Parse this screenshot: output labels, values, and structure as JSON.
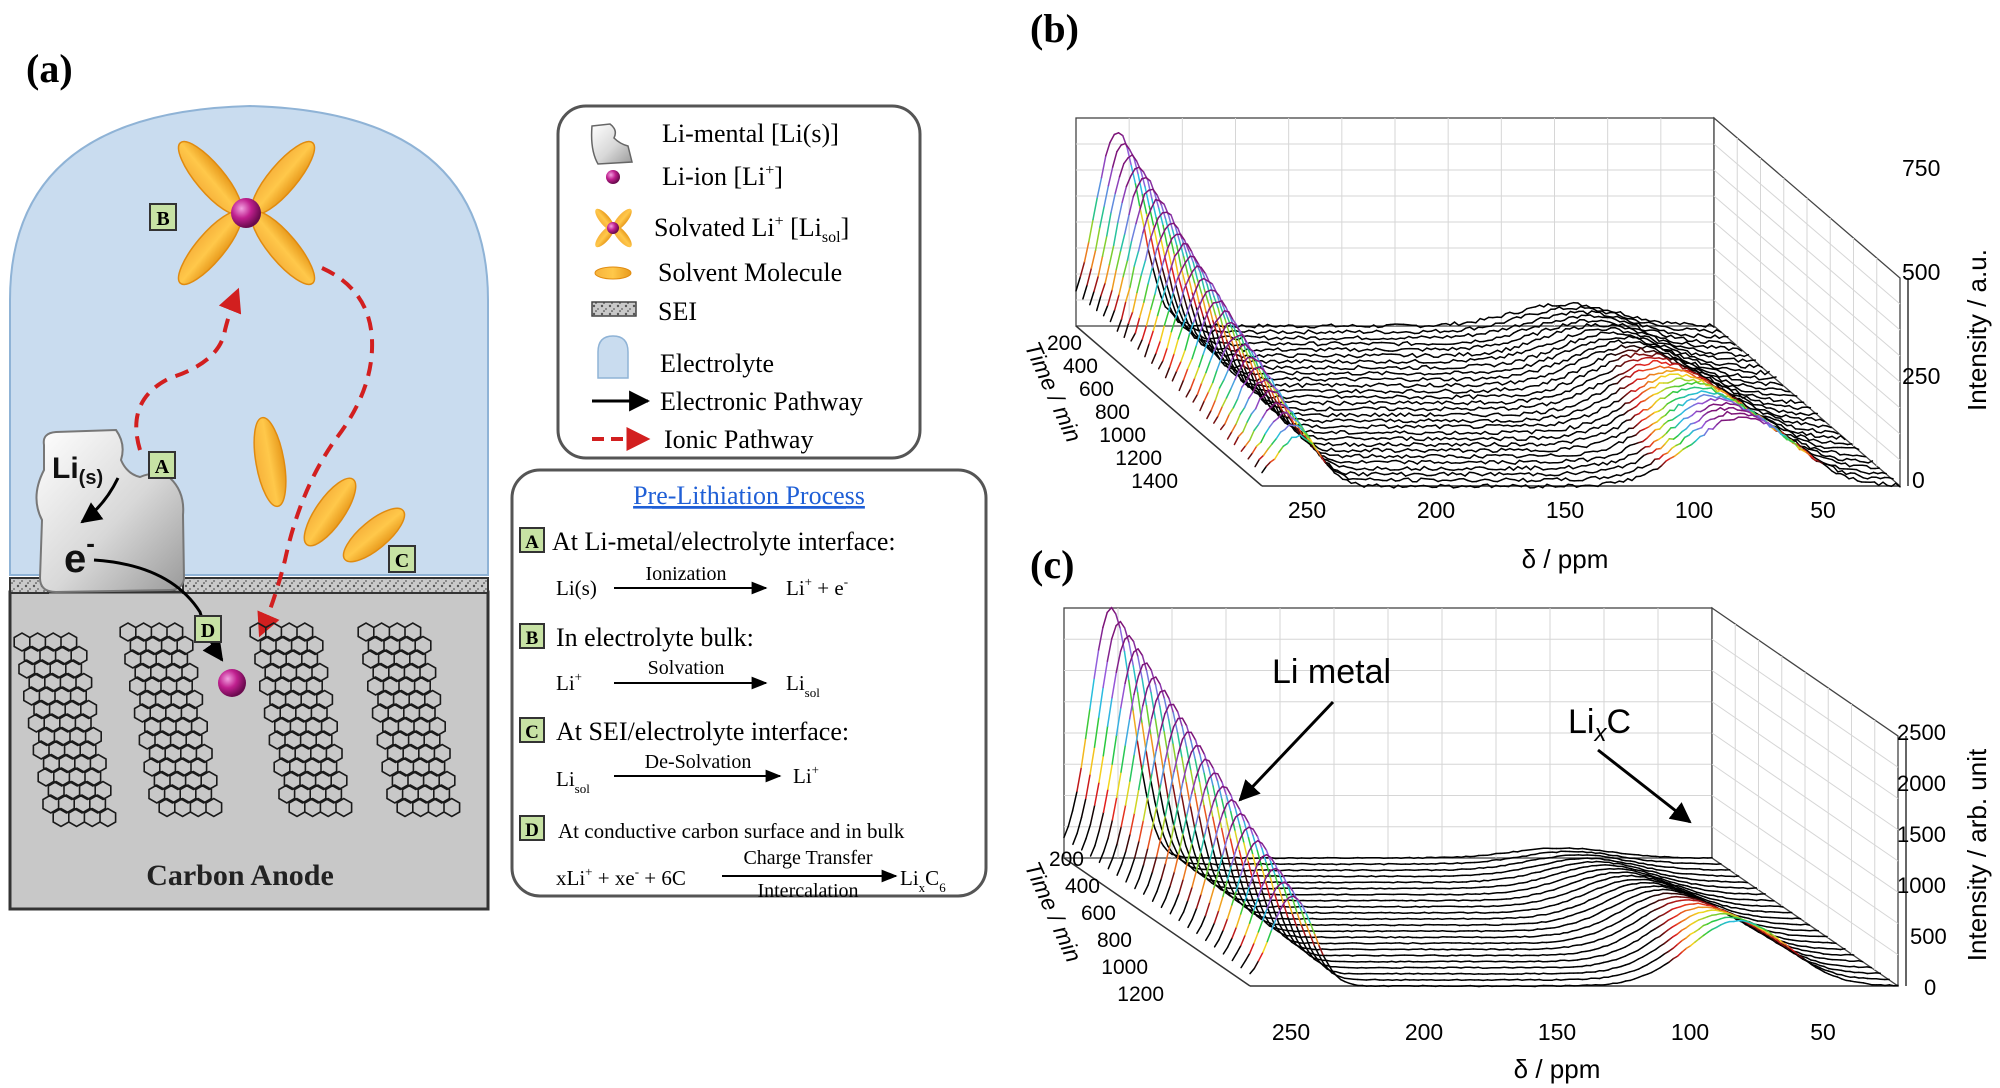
{
  "panels": {
    "a": "(a)",
    "b": "(b)",
    "c": "(c)"
  },
  "scene": {
    "li_solid": "Li",
    "li_solid_sub": "(s)",
    "electron": "e",
    "electron_sup": "-",
    "anode_label": "Carbon Anode",
    "markers": [
      "A",
      "B",
      "C",
      "D"
    ]
  },
  "legend": {
    "items": [
      {
        "text": "Li-mental [Li(s)]"
      },
      {
        "text": "Li-ion [Li",
        "sup": "+",
        "tail": "]"
      },
      {
        "text": "Solvated Li",
        "sup": "+",
        "mid": " [Li",
        "sub": "sol",
        "tail": "]"
      },
      {
        "text": "Solvent Molecule"
      },
      {
        "text": "SEI"
      },
      {
        "text": "Electrolyte"
      },
      {
        "text": "Electronic Pathway"
      },
      {
        "text": "Ionic Pathway"
      }
    ]
  },
  "process": {
    "title": "Pre-Lithiation Process",
    "steps": [
      {
        "marker": "A",
        "heading": "At Li-metal/electrolyte interface:"
      },
      {
        "marker": "B",
        "heading": "In electrolyte bulk:"
      },
      {
        "marker": "C",
        "heading": "At SEI/electrolyte interface:"
      },
      {
        "marker": "D",
        "heading": "At conductive carbon surface and in bulk"
      }
    ],
    "eq_a": {
      "lhs": "Li(s)",
      "arrow": "Ionization",
      "rhs": "Li",
      "rhs_sup": "+",
      "rhs_tail": " + e",
      "rhs_tail_sup": "-"
    },
    "eq_b": {
      "lhs": "Li",
      "lhs_sup": "+",
      "arrow": "Solvation",
      "rhs": "Li",
      "rhs_sub": "sol"
    },
    "eq_c": {
      "lhs": "Li",
      "lhs_sub": "sol",
      "arrow": "De-Solvation",
      "rhs": "Li",
      "rhs_sup": "+"
    },
    "eq_d": {
      "lhs": "xLi",
      "lhs_sup": "+",
      "lhs_mid": " + xe",
      "lhs_mid_sup": "-",
      "lhs_tail": " + 6C",
      "arrow_top": "Charge Transfer",
      "arrow_bottom": "Intercalation",
      "rhs": "Li",
      "rhs_sub1": "x",
      "rhs_mid": "C",
      "rhs_sub2": "6"
    }
  },
  "chart_b": {
    "xlabel": "δ / ppm",
    "ylabel": "Intensity / a.u.",
    "tlabel": "Time / min",
    "xticks": [
      "250",
      "200",
      "150",
      "100",
      "50"
    ],
    "zticks": [
      "0",
      "250",
      "500",
      "750"
    ],
    "tticks": [
      "200",
      "400",
      "600",
      "800",
      "1000",
      "1200",
      "1400"
    ]
  },
  "chart_c": {
    "xlabel": "δ / ppm",
    "ylabel": "Intensity / arb. unit",
    "tlabel": "Time / min",
    "xticks": [
      "250",
      "200",
      "150",
      "100",
      "50"
    ],
    "zticks": [
      "0",
      "500",
      "1000",
      "1500",
      "2000",
      "2500"
    ],
    "tticks": [
      "200",
      "400",
      "600",
      "800",
      "1000",
      "1200"
    ],
    "annotation_li": "Li metal",
    "annotation_lix": "Li",
    "annotation_lix_sub": "x",
    "annotation_lix_tail": "C"
  },
  "chart_data": [
    {
      "type": "line",
      "x_range": [
        280,
        20
      ],
      "z_range": [
        0,
        750
      ],
      "time_range": [
        0,
        1400
      ],
      "peaks": [
        {
          "name": "Li metal",
          "position_ppm": 265,
          "max_intensity_start": 700,
          "max_intensity_end": 180
        },
        {
          "name": "LixC",
          "position_ppm": 80,
          "max_intensity_start": 80,
          "max_intensity_end": 250
        }
      ],
      "series_count": 28
    },
    {
      "type": "line",
      "x_range": [
        280,
        20
      ],
      "z_range": [
        0,
        2500
      ],
      "time_range": [
        0,
        1200
      ],
      "peaks": [
        {
          "name": "Li metal",
          "position_ppm": 263,
          "max_intensity_start": 2500,
          "max_intensity_end": 900
        },
        {
          "name": "LixC",
          "position_ppm": 80,
          "max_intensity_start": 100,
          "max_intensity_end": 650
        }
      ],
      "series_count": 22
    }
  ]
}
